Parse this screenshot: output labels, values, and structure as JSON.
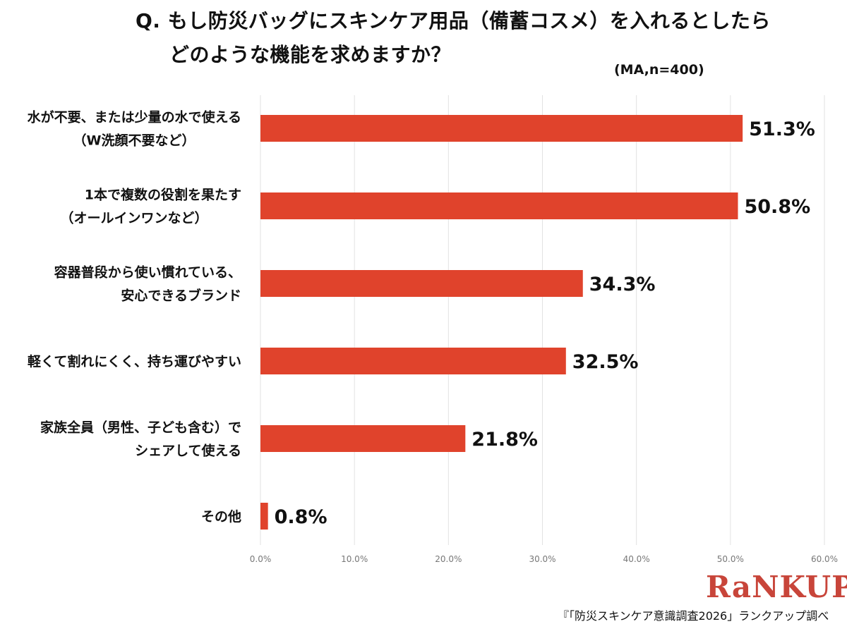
{
  "header": {
    "title_line1": "Q. もし防災バッグにスキンケア用品（備蓄コスメ）を入れるとしたら",
    "title_line2": "どのような機能を求めますか？",
    "sample_note": "(MA,n=400)"
  },
  "footer": {
    "brand": "RaNKUP",
    "source": "『「防災スキンケア意識調査2026」ランクアップ調べ"
  },
  "chart_data": {
    "type": "bar",
    "orientation": "horizontal",
    "title": "Q. もし防災バッグにスキンケア用品（備蓄コスメ）を入れるとしたら どのような機能を求めますか？",
    "categories": [
      [
        "水が不要、または少量の水で使える",
        "（W洗顔不要など）"
      ],
      [
        "1本で複数の役割を果たす",
        "（オールインワンなど）"
      ],
      [
        "容器普段から使い慣れている、",
        "安心できるブランド"
      ],
      [
        "軽くて割れにくく、持ち運びやすい"
      ],
      [
        "家族全員（男性、子ども含む）で",
        "シェアして使える"
      ],
      [
        "その他"
      ]
    ],
    "values": [
      51.3,
      50.8,
      34.3,
      32.5,
      21.8,
      0.8
    ],
    "value_labels": [
      "51.3%",
      "50.8%",
      "34.3%",
      "32.5%",
      "21.8%",
      "0.8%"
    ],
    "xlim": [
      0,
      60
    ],
    "ticks": [
      0,
      10,
      20,
      30,
      40,
      50,
      60
    ],
    "tick_labels": [
      "0.0%",
      "10.0%",
      "20.0%",
      "30.0%",
      "40.0%",
      "50.0%",
      "60.0%"
    ],
    "grid": true,
    "bar_color": "#e0432c",
    "grid_color": "#e2e2e2"
  }
}
